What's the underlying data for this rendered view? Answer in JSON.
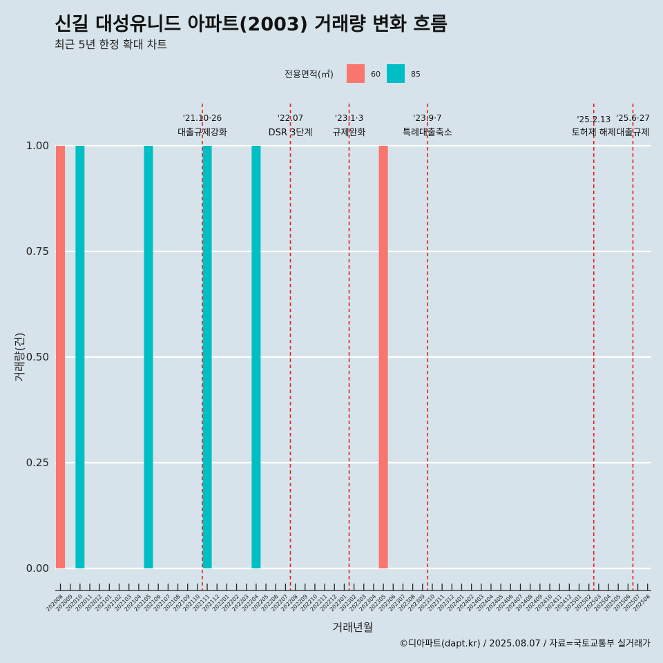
{
  "title": "신길 대성유니드 아파트(2003) 거래량 변화 흐름",
  "subtitle": "최근 5년 한정 확대 차트",
  "caption": "©디아파트(dapt.kr) / 2025.08.07 / 자료=국토교통부 실거래가",
  "legend": {
    "title": "전용면적(㎡)",
    "items": [
      {
        "label": "60",
        "color": "#f8766d"
      },
      {
        "label": "85",
        "color": "#00bfc4"
      }
    ]
  },
  "chart_data": {
    "type": "bar",
    "title": "신길 대성유니드 아파트(2003) 거래량 변화 흐름",
    "subtitle": "최근 5년 한정 확대 차트",
    "xlabel": "거래년월",
    "ylabel": "거래량(건)",
    "ylim": [
      0,
      1
    ],
    "yticks": [
      "0.00",
      "0.25",
      "0.50",
      "0.75",
      "1.00"
    ],
    "grid": true,
    "legend_position": "top",
    "categories": [
      "202008",
      "202009",
      "202010",
      "202011",
      "202012",
      "202101",
      "202102",
      "202103",
      "202104",
      "202105",
      "202106",
      "202107",
      "202108",
      "202109",
      "202110",
      "202111",
      "202112",
      "202201",
      "202202",
      "202203",
      "202204",
      "202205",
      "202206",
      "202207",
      "202208",
      "202209",
      "202210",
      "202211",
      "202212",
      "202301",
      "202302",
      "202303",
      "202304",
      "202305",
      "202306",
      "202307",
      "202308",
      "202309",
      "202310",
      "202311",
      "202312",
      "202401",
      "202402",
      "202403",
      "202404",
      "202405",
      "202406",
      "202407",
      "202408",
      "202409",
      "202410",
      "202411",
      "202412",
      "202501",
      "202502",
      "202503",
      "202504",
      "202505",
      "202506",
      "202507",
      "202508"
    ],
    "series": [
      {
        "name": "60",
        "color": "#f8766d",
        "points": [
          [
            "202008",
            1
          ],
          [
            "202305",
            1
          ]
        ]
      },
      {
        "name": "85",
        "color": "#00bfc4",
        "points": [
          [
            "202010",
            1
          ],
          [
            "202105",
            1
          ],
          [
            "202111",
            1
          ],
          [
            "202204",
            1
          ]
        ]
      }
    ],
    "annotations": [
      {
        "date": "'21.10·26",
        "label": "대출규제강화",
        "at": "202110"
      },
      {
        "date": "'22.07",
        "label": "DSR 3단계",
        "at": "202207"
      },
      {
        "date": "'23.1·3",
        "label": "규제완화",
        "at": "202301"
      },
      {
        "date": "'23.9·7",
        "label": "특례대출축소",
        "at": "202309"
      },
      {
        "date": "'25.2.13",
        "label": "토허제 해제",
        "at": "202502"
      },
      {
        "date": "'25.6·27",
        "label": "대출규제",
        "at": "202506"
      }
    ]
  }
}
